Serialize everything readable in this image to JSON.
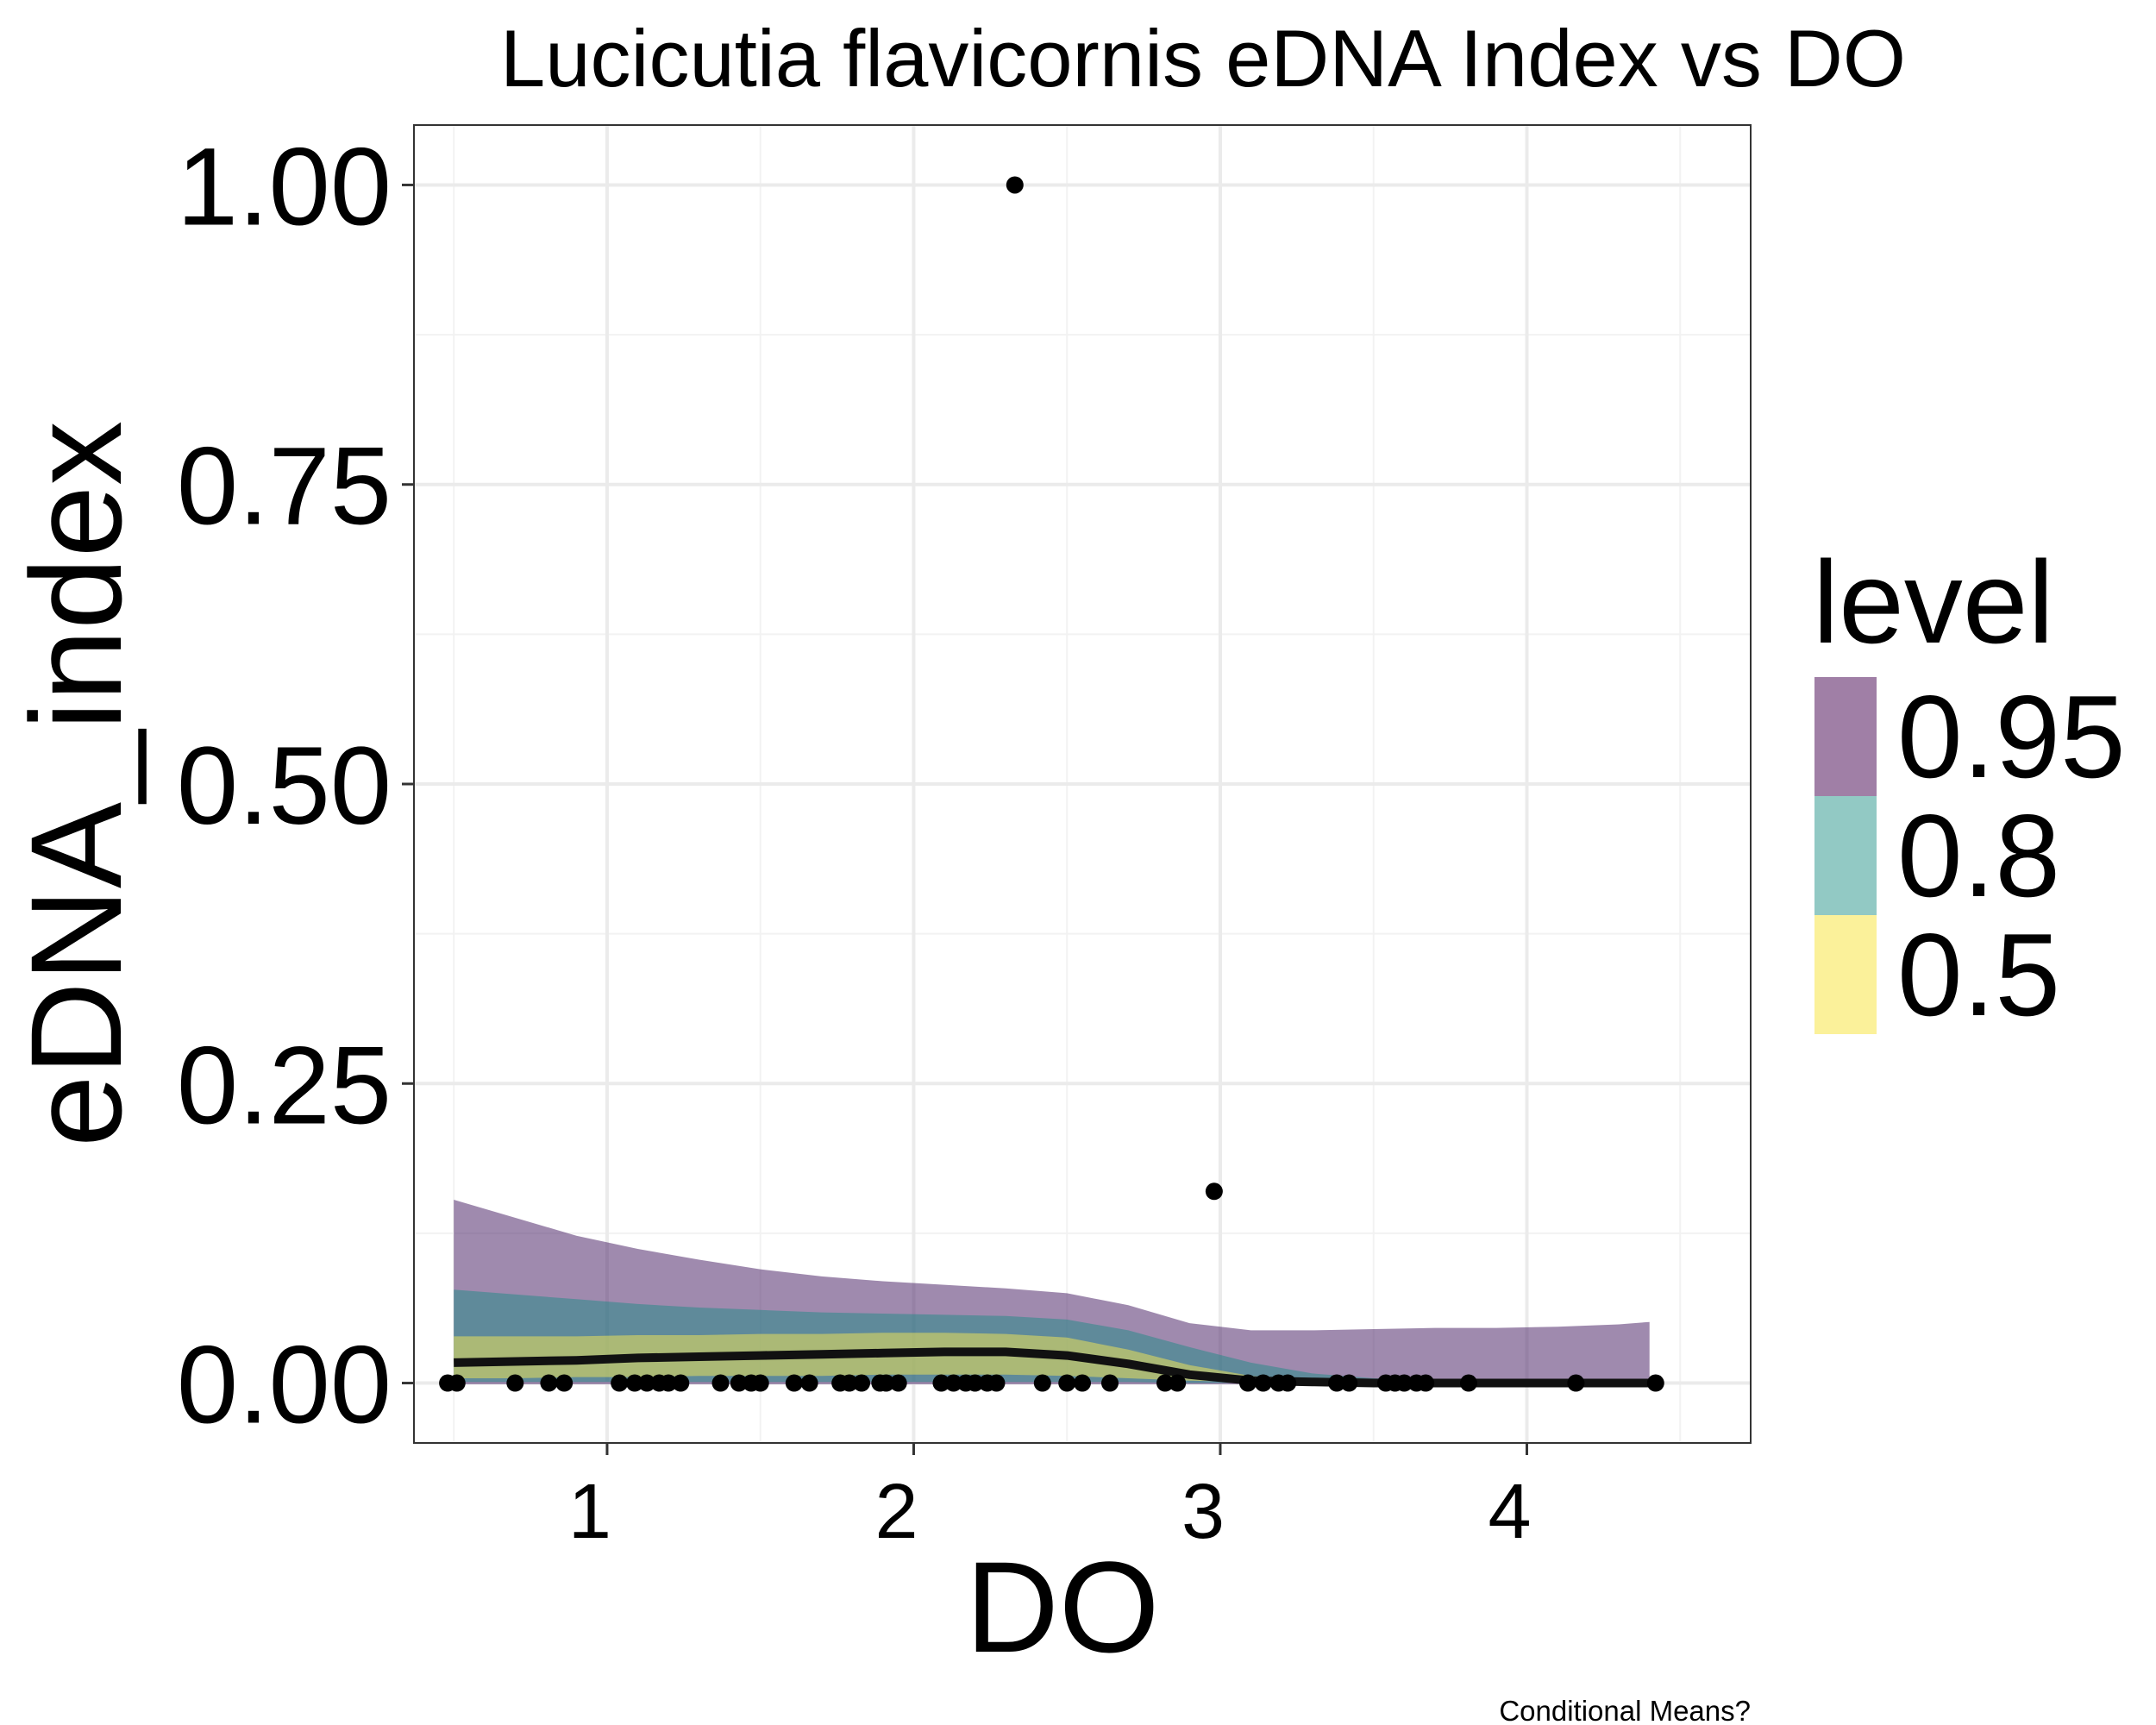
{
  "chart_data": {
    "type": "area",
    "title": "Lucicutia flavicornis eDNA Index vs DO",
    "xlabel": "DO",
    "ylabel": "eDNA_index",
    "caption": "Conditional Means?",
    "xlim": [
      0.37,
      4.73
    ],
    "ylim": [
      -0.05,
      1.05
    ],
    "x_ticks": [
      "1",
      "2",
      "3",
      "4"
    ],
    "x_tick_values": [
      1,
      2,
      3,
      4
    ],
    "y_ticks": [
      "0.00",
      "0.25",
      "0.50",
      "0.75",
      "1.00"
    ],
    "y_tick_values": [
      0,
      0.25,
      0.5,
      0.75,
      1.0
    ],
    "grid": true,
    "legend": {
      "title": "level",
      "position": "right",
      "entries": [
        {
          "label": "0.95",
          "color": "#a07fa6"
        },
        {
          "label": "0.8",
          "color": "#92c9c4"
        },
        {
          "label": "0.5",
          "color": "#fbf19a"
        }
      ]
    },
    "bands": [
      {
        "level": "0.95",
        "color": "#512a6b",
        "x": [
          0.5,
          0.7,
          0.9,
          1.1,
          1.3,
          1.5,
          1.7,
          1.9,
          2.1,
          2.3,
          2.5,
          2.7,
          2.9,
          3.1,
          3.3,
          3.5,
          3.7,
          3.9,
          4.1,
          4.3,
          4.4
        ],
        "upper": [
          0.153,
          0.138,
          0.123,
          0.112,
          0.103,
          0.095,
          0.089,
          0.085,
          0.082,
          0.079,
          0.075,
          0.065,
          0.05,
          0.044,
          0.044,
          0.045,
          0.046,
          0.046,
          0.047,
          0.049,
          0.051
        ],
        "lower": [
          -0.001,
          -0.001,
          -0.001,
          -0.001,
          -0.001,
          -0.001,
          -0.001,
          -0.001,
          -0.001,
          -0.001,
          -0.001,
          -0.001,
          -0.001,
          -0.001,
          -0.001,
          -0.001,
          -0.001,
          -0.001,
          -0.001,
          -0.001,
          -0.001
        ]
      },
      {
        "level": "0.8",
        "color": "#2a8a8a",
        "x": [
          0.5,
          0.7,
          0.9,
          1.1,
          1.3,
          1.5,
          1.7,
          1.9,
          2.1,
          2.3,
          2.5,
          2.7,
          2.9,
          3.1,
          3.3,
          3.5,
          3.7,
          3.9,
          4.1,
          4.3,
          4.4
        ],
        "upper": [
          0.078,
          0.074,
          0.07,
          0.066,
          0.063,
          0.061,
          0.059,
          0.058,
          0.057,
          0.056,
          0.053,
          0.044,
          0.03,
          0.017,
          0.008,
          0.004,
          0.002,
          0.001,
          0.001,
          0.001,
          0.001
        ],
        "lower": [
          0.001,
          0.001,
          0.001,
          0.001,
          0.001,
          0.001,
          0.001,
          0.001,
          0.001,
          0.001,
          0.001,
          0.001,
          0.0,
          0.0,
          0.0,
          0.0,
          0.0,
          0.0,
          0.0,
          0.0,
          0.0
        ]
      },
      {
        "level": "0.5",
        "color": "#e9e05a",
        "x": [
          0.5,
          0.7,
          0.9,
          1.1,
          1.3,
          1.5,
          1.7,
          1.9,
          2.1,
          2.3,
          2.5,
          2.7,
          2.9,
          3.1,
          3.3,
          3.5,
          3.7,
          3.9,
          4.1,
          4.3,
          4.4
        ],
        "upper": [
          0.039,
          0.039,
          0.039,
          0.04,
          0.04,
          0.041,
          0.041,
          0.042,
          0.042,
          0.041,
          0.038,
          0.028,
          0.015,
          0.006,
          0.002,
          0.001,
          0.0,
          0.0,
          0.0,
          0.0,
          0.0
        ],
        "lower": [
          0.004,
          0.004,
          0.005,
          0.005,
          0.006,
          0.006,
          0.006,
          0.007,
          0.007,
          0.007,
          0.006,
          0.004,
          0.002,
          0.001,
          0.0,
          0.0,
          0.0,
          0.0,
          0.0,
          0.0,
          0.0
        ]
      }
    ],
    "line": {
      "color": "#111111",
      "x": [
        0.5,
        0.7,
        0.9,
        1.1,
        1.3,
        1.5,
        1.7,
        1.9,
        2.1,
        2.3,
        2.5,
        2.7,
        2.9,
        3.1,
        3.3,
        3.5,
        3.7,
        3.9,
        4.1,
        4.3,
        4.4
      ],
      "y": [
        0.017,
        0.018,
        0.019,
        0.021,
        0.022,
        0.023,
        0.024,
        0.025,
        0.026,
        0.026,
        0.023,
        0.016,
        0.007,
        0.002,
        0.001,
        0.0,
        0.0,
        0.0,
        0.0,
        0.0,
        0.0
      ]
    },
    "points": {
      "x": [
        0.48,
        0.51,
        0.7,
        0.81,
        0.86,
        1.04,
        1.09,
        1.13,
        1.17,
        1.2,
        1.24,
        1.37,
        1.43,
        1.47,
        1.5,
        1.61,
        1.66,
        1.76,
        1.79,
        1.83,
        1.89,
        1.91,
        1.95,
        2.09,
        2.13,
        2.17,
        2.2,
        2.24,
        2.27,
        2.33,
        2.42,
        2.5,
        2.55,
        2.64,
        2.82,
        2.86,
        2.98,
        3.09,
        3.14,
        3.19,
        3.22,
        3.38,
        3.42,
        3.54,
        3.57,
        3.6,
        3.64,
        3.67,
        3.81,
        4.16,
        4.42
      ],
      "y": [
        0,
        0,
        0,
        0,
        0,
        0,
        0,
        0,
        0,
        0,
        0,
        0,
        0,
        0,
        0,
        0,
        0,
        0,
        0,
        0,
        0,
        0,
        0,
        0,
        0,
        0,
        0,
        0,
        0,
        1.0,
        0,
        0,
        0,
        0,
        0,
        0,
        0.16,
        0,
        0,
        0,
        0,
        0,
        0,
        0,
        0,
        0,
        0,
        0,
        0,
        0,
        0
      ]
    }
  }
}
